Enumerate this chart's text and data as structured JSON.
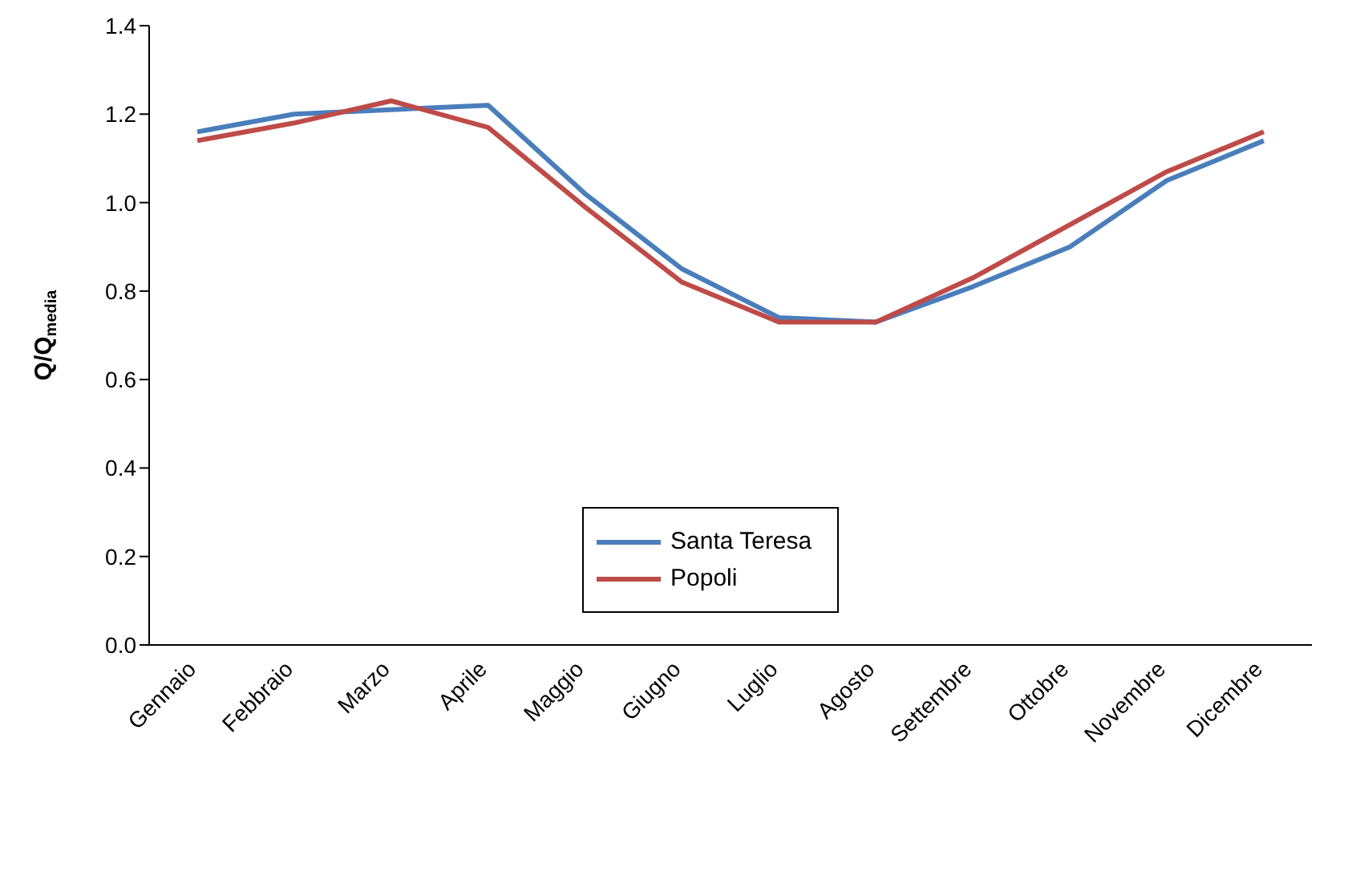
{
  "chart_data": {
    "type": "line",
    "ylabel": "Q/Q$_{media}$",
    "categories": [
      "Gennaio",
      "Febbraio",
      "Marzo",
      "Aprile",
      "Maggio",
      "Giugno",
      "Luglio",
      "Agosto",
      "Settembre",
      "Ottobre",
      "Novembre",
      "Dicembre"
    ],
    "series": [
      {
        "name": "Santa Teresa",
        "color": "#4a7ebb",
        "values": [
          1.16,
          1.2,
          1.21,
          1.22,
          1.02,
          0.85,
          0.74,
          0.73,
          0.81,
          0.9,
          1.05,
          1.14
        ]
      },
      {
        "name": "Popoli",
        "color": "#be4b48",
        "values": [
          1.14,
          1.18,
          1.23,
          1.17,
          0.99,
          0.82,
          0.73,
          0.73,
          0.83,
          0.95,
          1.07,
          1.16
        ]
      }
    ],
    "ylim": [
      0,
      1.4
    ],
    "yticks": [
      {
        "value": 0,
        "label": "0.0"
      },
      0.2,
      0.4,
      0.6,
      0.8,
      {
        "value": 1,
        "label": "1.0"
      },
      1.2,
      1.4
    ],
    "legend": "bottom",
    "marker": "none",
    "line_style": "solid"
  }
}
